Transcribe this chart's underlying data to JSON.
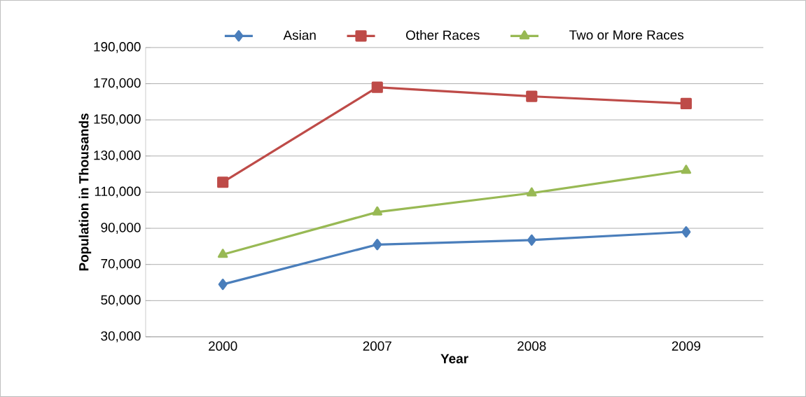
{
  "chart_data": {
    "type": "line",
    "xlabel": "Year",
    "ylabel": "Population in Thousands",
    "categories": [
      "2000",
      "2007",
      "2008",
      "2009"
    ],
    "series": [
      {
        "name": "Asian",
        "color": "#4a7ebb",
        "marker": "diamond",
        "values": [
          59000,
          81000,
          83500,
          88000
        ]
      },
      {
        "name": "Other Races",
        "color": "#be4b48",
        "marker": "square",
        "values": [
          115500,
          168000,
          163000,
          159000
        ]
      },
      {
        "name": "Two or More Races",
        "color": "#98b954",
        "marker": "triangle",
        "values": [
          75500,
          99000,
          109500,
          122000
        ]
      }
    ],
    "ylim": [
      30000,
      190000
    ],
    "yticks": [
      {
        "value": 30000,
        "label": "30,000"
      },
      {
        "value": 50000,
        "label": "50,000"
      },
      {
        "value": 70000,
        "label": "70,000"
      },
      {
        "value": 90000,
        "label": "90,000"
      },
      {
        "value": 110000,
        "label": "110,000"
      },
      {
        "value": 130000,
        "label": "130,000"
      },
      {
        "value": 150000,
        "label": "150,000"
      },
      {
        "value": 170000,
        "label": "170,000"
      },
      {
        "value": 190000,
        "label": "190,000"
      }
    ],
    "grid": "y",
    "legend": "top"
  }
}
